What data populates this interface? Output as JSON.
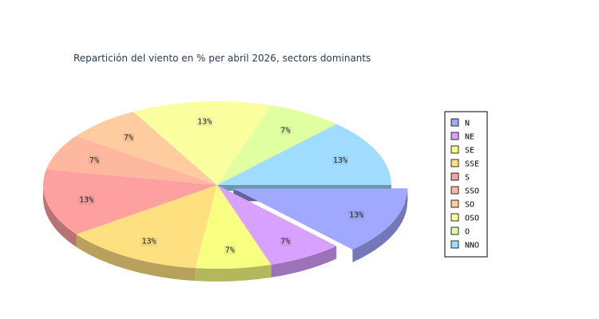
{
  "chart_data": {
    "type": "pie",
    "title": "Repartición del viento en % per abril 2026, sectors dominants",
    "categories": [
      "N",
      "NE",
      "SE",
      "SSE",
      "S",
      "SSO",
      "SO",
      "OSO",
      "O",
      "NNO"
    ],
    "values": [
      13,
      7,
      7,
      13,
      13,
      7,
      7,
      13,
      7,
      13
    ],
    "value_labels": [
      "13%",
      "7%",
      "7%",
      "13%",
      "13%",
      "7%",
      "7%",
      "13%",
      "7%",
      "13%"
    ],
    "colors": [
      "#a0a8ff",
      "#d8a0ff",
      "#f8ff80",
      "#ffe080",
      "#ffa0a0",
      "#ffb8a0",
      "#ffcca0",
      "#faffa0",
      "#e0ffa0",
      "#a0dcff"
    ],
    "exploded": [
      "N"
    ],
    "style": "3d",
    "legend": "right"
  }
}
